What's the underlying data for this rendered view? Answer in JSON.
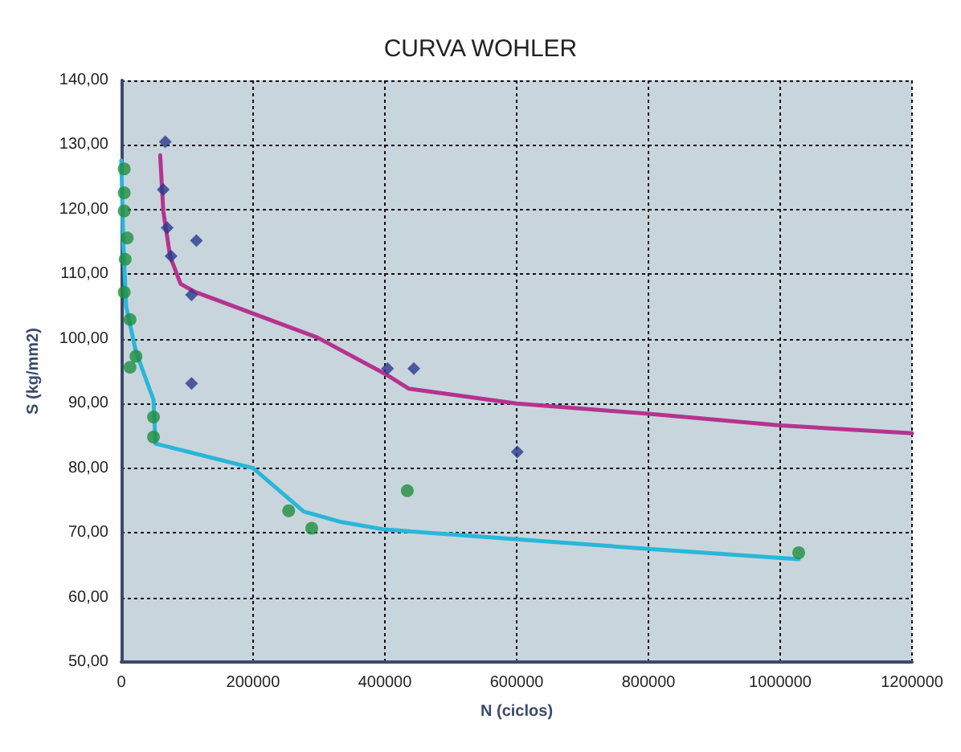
{
  "chart_data": {
    "type": "scatter",
    "title": "CURVA WOHLER",
    "xlabel": "N (ciclos)",
    "ylabel": "S (kg/mm2)",
    "xlim": [
      0,
      1200000
    ],
    "xticks": [
      0,
      200000,
      400000,
      600000,
      800000,
      1000000,
      1200000
    ],
    "ylim": [
      50,
      140
    ],
    "yticks": [
      {
        "value": 50,
        "label": "50,00"
      },
      {
        "value": 60,
        "label": "60,00"
      },
      {
        "value": 70,
        "label": "70,00"
      },
      {
        "value": 80,
        "label": "80,00"
      },
      {
        "value": 90,
        "label": "90,00"
      },
      {
        "value": 100,
        "label": "100,00"
      },
      {
        "value": 110,
        "label": "110,00"
      },
      {
        "value": 120,
        "label": "120,00"
      },
      {
        "value": 130,
        "label": "130,00"
      },
      {
        "value": 140,
        "label": "140,00"
      }
    ],
    "grid": true,
    "series": [
      {
        "marker": "diamond",
        "color": "#2b3a8f",
        "x": [
          66700,
          63700,
          69600,
          114000,
          75500,
          106600,
          106600,
          404000,
          444000,
          601000
        ],
        "values": [
          130.5,
          123.1,
          117.2,
          115.2,
          112.8,
          106.8,
          93.1,
          95.4,
          95.4,
          82.5
        ]
      },
      {
        "marker": "circle",
        "color": "#1f8f3f",
        "x": [
          4400,
          4400,
          4400,
          8900,
          5900,
          4400,
          13300,
          22200,
          13300,
          48900,
          48900,
          254000,
          289000,
          434000,
          1028000
        ],
        "values": [
          126.3,
          122.6,
          119.8,
          115.6,
          112.3,
          107.2,
          103.0,
          97.3,
          95.6,
          87.9,
          84.8,
          73.4,
          70.7,
          76.5,
          66.9
        ]
      },
      {
        "type": "line",
        "marker": "none",
        "color": "#b5338f",
        "x": [
          59000,
          63700,
          74000,
          90000,
          111000,
          297600,
          400000,
          436000,
          600000,
          800000,
          1000000,
          1200000
        ],
        "values": [
          128.4,
          119.8,
          112.8,
          108.5,
          107.3,
          100.2,
          94.6,
          92.3,
          90.0,
          88.4,
          86.6,
          85.4
        ]
      },
      {
        "type": "line",
        "marker": "none",
        "color": "#29b6d8",
        "x": [
          0,
          3000,
          7400,
          22200,
          44400,
          48900,
          51800,
          200000,
          276700,
          332000,
          400000,
          600000,
          800000,
          1028000
        ],
        "values": [
          127.6,
          115,
          105,
          98,
          91.8,
          90.6,
          83.8,
          80,
          73.3,
          71.7,
          70.5,
          69,
          67.5,
          65.9
        ]
      }
    ]
  }
}
